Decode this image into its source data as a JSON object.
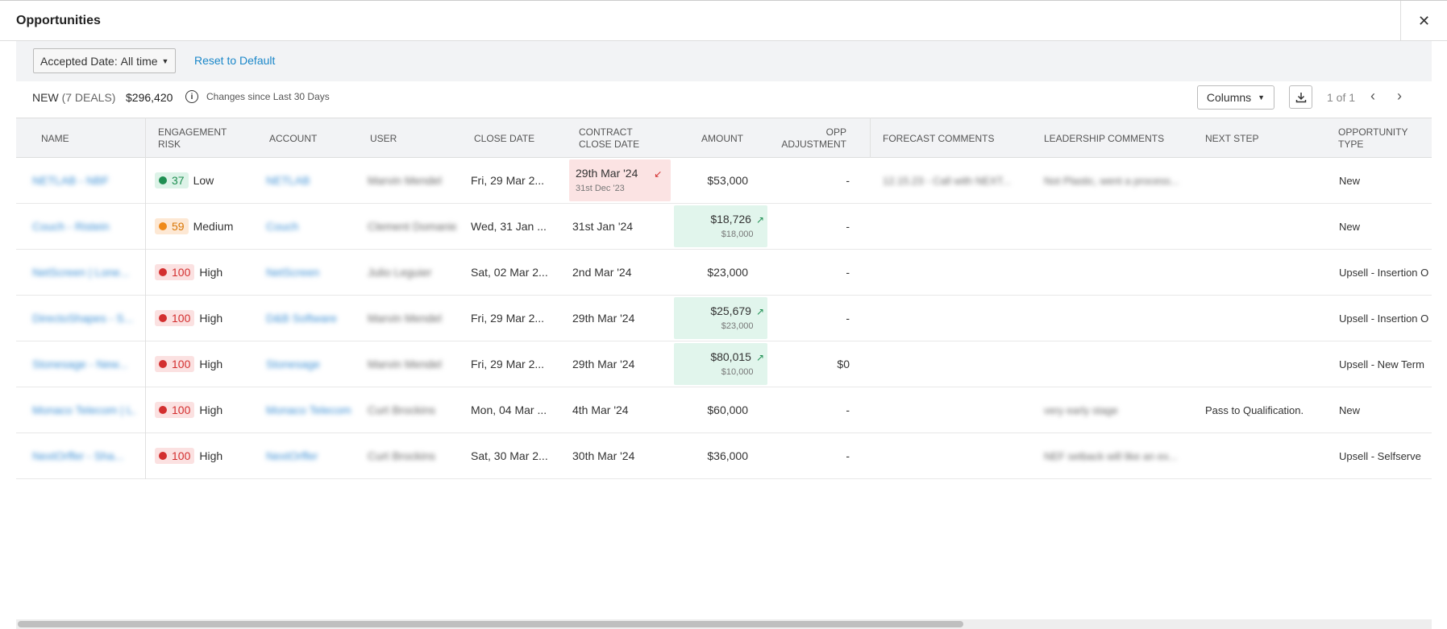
{
  "window": {
    "title": "Opportunities",
    "close_glyph": "✕"
  },
  "filter": {
    "label": "Accepted Date:",
    "value": "All time",
    "reset_label": "Reset to Default"
  },
  "summary": {
    "stage": "NEW",
    "deals": "(7 DEALS)",
    "total": "$296,420",
    "changes_label": "Changes since Last 30 Days"
  },
  "toolbar": {
    "columns_label": "Columns",
    "pager": "1 of 1"
  },
  "columns": [
    "NAME",
    "ENGAGEMENT RISK",
    "ACCOUNT",
    "USER",
    "CLOSE DATE",
    "CONTRACT CLOSE DATE",
    "AMOUNT",
    "OPP ADJUSTMENT",
    "FORECAST COMMENTS",
    "LEADERSHIP COMMENTS",
    "NEXT STEP",
    "OPPORTUNITY TYPE"
  ],
  "header": {
    "name": "NAME",
    "risk_1": "ENGAGEMENT",
    "risk_2": "RISK",
    "account": "ACCOUNT",
    "user": "USER",
    "close_date": "CLOSE DATE",
    "contract_1": "CONTRACT",
    "contract_2": "CLOSE DATE",
    "amount": "AMOUNT",
    "adj_1": "OPP",
    "adj_2": "ADJUSTMENT",
    "forecast": "FORECAST COMMENTS",
    "leadership": "LEADERSHIP COMMENTS",
    "next_step": "NEXT STEP",
    "type_1": "OPPORTUNITY",
    "type_2": "TYPE"
  },
  "rows": [
    {
      "name": "NETLAB - NBF",
      "risk_score": "37",
      "risk_level": "Low",
      "risk_class": "low",
      "account": "NETLAB",
      "user": "Marvin Mendel",
      "close_date": "Fri, 29 Mar 2...",
      "contract_close": "29th Mar '24",
      "contract_prev": "31st Dec '23",
      "contract_change": "down",
      "amount": "$53,000",
      "amount_prev": "",
      "amount_change": "none",
      "adjustment": "-",
      "forecast": "12.15.23 - Call with NEXT...",
      "leadership": "Not Plastic, went a process...",
      "next_step": "",
      "type": "New"
    },
    {
      "name": "Couch - Ristein",
      "risk_score": "59",
      "risk_level": "Medium",
      "risk_class": "med",
      "account": "Couch",
      "user": "Clement Domaniek",
      "close_date": "Wed, 31 Jan ...",
      "contract_close": "31st Jan '24",
      "contract_prev": "",
      "contract_change": "none",
      "amount": "$18,726",
      "amount_prev": "$18,000",
      "amount_change": "up",
      "adjustment": "-",
      "forecast": "",
      "leadership": "",
      "next_step": "",
      "type": "New"
    },
    {
      "name": "NetScreen | Lone...",
      "risk_score": "100",
      "risk_level": "High",
      "risk_class": "high",
      "account": "NetScreen",
      "user": "Julio Leguier",
      "close_date": "Sat, 02 Mar 2...",
      "contract_close": "2nd Mar '24",
      "contract_prev": "",
      "contract_change": "none",
      "amount": "$23,000",
      "amount_prev": "",
      "amount_change": "none",
      "adjustment": "-",
      "forecast": "",
      "leadership": "",
      "next_step": "",
      "type": "Upsell - Insertion O"
    },
    {
      "name": "DirectoShapes - S...",
      "risk_score": "100",
      "risk_level": "High",
      "risk_class": "high",
      "account": "D&B Software",
      "user": "Marvin Mendel",
      "close_date": "Fri, 29 Mar 2...",
      "contract_close": "29th Mar '24",
      "contract_prev": "",
      "contract_change": "none",
      "amount": "$25,679",
      "amount_prev": "$23,000",
      "amount_change": "up",
      "adjustment": "-",
      "forecast": "",
      "leadership": "",
      "next_step": "",
      "type": "Upsell - Insertion O"
    },
    {
      "name": "Stonesage - New...",
      "risk_score": "100",
      "risk_level": "High",
      "risk_class": "high",
      "account": "Stonesage",
      "user": "Marvin Mendel",
      "close_date": "Fri, 29 Mar 2...",
      "contract_close": "29th Mar '24",
      "contract_prev": "",
      "contract_change": "none",
      "amount": "$80,015",
      "amount_prev": "$10,000",
      "amount_change": "up",
      "adjustment": "$0",
      "forecast": "",
      "leadership": "",
      "next_step": "",
      "type": "Upsell - New Term"
    },
    {
      "name": "Monaco Telecom | L...",
      "risk_score": "100",
      "risk_level": "High",
      "risk_class": "high",
      "account": "Monaco Telecom",
      "user": "Curt Brockins",
      "close_date": "Mon, 04 Mar ...",
      "contract_close": "4th Mar '24",
      "contract_prev": "",
      "contract_change": "none",
      "amount": "$60,000",
      "amount_prev": "",
      "amount_change": "none",
      "adjustment": "-",
      "forecast": "",
      "leadership": "very early stage",
      "next_step": "Pass to Qualification.",
      "type": "New"
    },
    {
      "name": "NextOrffer - Sha...",
      "risk_score": "100",
      "risk_level": "High",
      "risk_class": "high",
      "account": "NextOrffer",
      "user": "Curt Brockins",
      "close_date": "Sat, 30 Mar 2...",
      "contract_close": "30th Mar '24",
      "contract_prev": "",
      "contract_change": "none",
      "amount": "$36,000",
      "amount_prev": "",
      "amount_change": "none",
      "adjustment": "-",
      "forecast": "",
      "leadership": "NEF setback will like an ex...",
      "next_step": "",
      "type": "Upsell - Selfserve"
    }
  ],
  "colors": {
    "accent_link": "#1a87c9",
    "risk_low": "#1f8f52",
    "risk_medium": "#ef8a1a",
    "risk_high": "#d32f2f",
    "changed_up_bg": "#e1f5ec",
    "changed_down_bg": "#fbe3e3"
  },
  "icons": {
    "info": "info-icon",
    "download": "download-icon",
    "prev": "chevron-left-icon",
    "next": "chevron-right-icon",
    "close": "close-icon"
  }
}
